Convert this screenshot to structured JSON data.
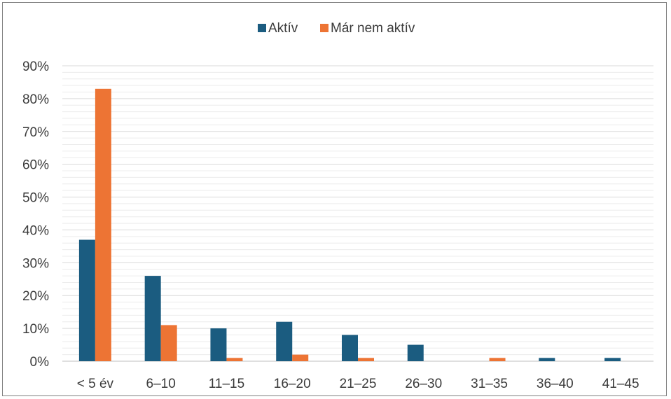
{
  "chart_data": {
    "type": "bar",
    "categories": [
      "< 5 év",
      "6–10",
      "11–15",
      "16–20",
      "21–25",
      "26–30",
      "31–35",
      "36–40",
      "41–45"
    ],
    "series": [
      {
        "name": "Aktív",
        "color": "#1b5c80",
        "values": [
          37,
          26,
          10,
          12,
          8,
          5,
          0,
          1,
          1
        ]
      },
      {
        "name": "Már nem aktív",
        "color": "#ed7434",
        "values": [
          83,
          11,
          1,
          2,
          1,
          0,
          1,
          0,
          0
        ]
      }
    ],
    "y_ticks": [
      "0%",
      "10%",
      "20%",
      "30%",
      "40%",
      "50%",
      "60%",
      "70%",
      "80%",
      "90%"
    ],
    "ylim": [
      0,
      90
    ],
    "grid": true,
    "minor_grid": true,
    "legend": "top-center"
  }
}
